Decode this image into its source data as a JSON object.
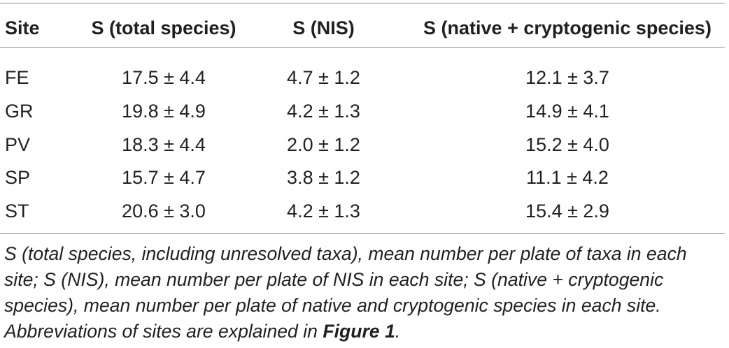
{
  "table": {
    "headers": [
      "Site",
      "S (total species)",
      "S (NIS)",
      "S (native + cryptogenic species)"
    ],
    "rows": [
      [
        "FE",
        "17.5 ± 4.4",
        "4.7 ± 1.2",
        "12.1 ± 3.7"
      ],
      [
        "GR",
        "19.8 ± 4.9",
        "4.2 ± 1.3",
        "14.9 ± 4.1"
      ],
      [
        "PV",
        "18.3 ± 4.4",
        "2.0 ± 1.2",
        "15.2 ± 4.0"
      ],
      [
        "SP",
        "15.7 ± 4.7",
        "3.8 ± 1.2",
        "11.1 ± 4.2"
      ],
      [
        "ST",
        "20.6 ± 3.0",
        "4.2 ± 1.3",
        "15.4 ± 2.9"
      ]
    ]
  },
  "footnote": {
    "text_before": "S (total species, including unresolved taxa), mean number per plate of taxa in each site; S (NIS), mean number per plate of NIS in each site; S (native + cryptogenic species), mean number per plate of native and cryptogenic species in each site. Abbreviations of sites are explained in ",
    "link_text": "Figure 1",
    "text_after": "."
  }
}
